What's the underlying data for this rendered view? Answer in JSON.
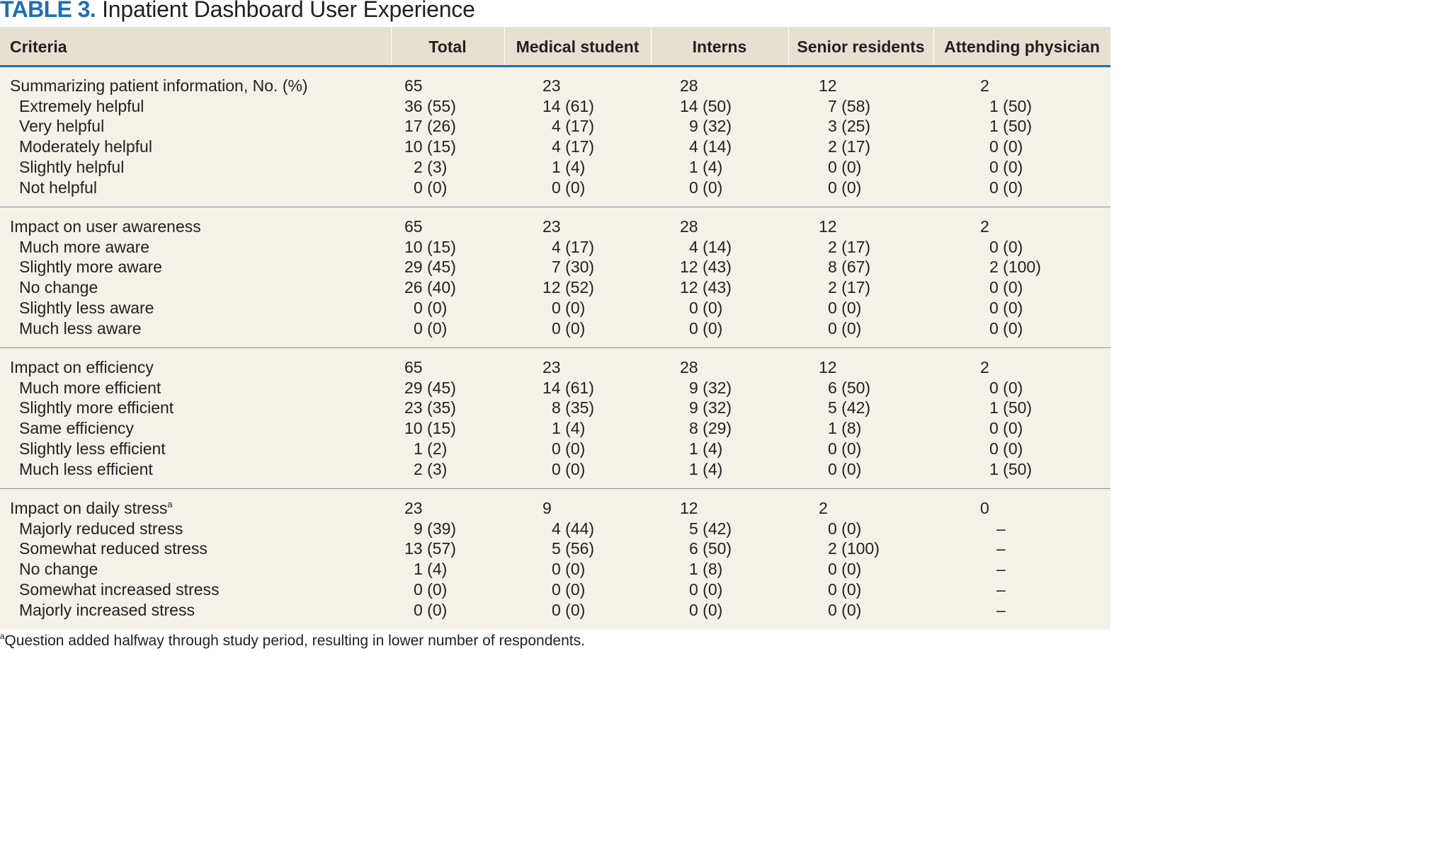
{
  "title": {
    "label": "TABLE 3.",
    "text": "Inpatient Dashboard User Experience"
  },
  "table": {
    "headers": [
      "Criteria",
      "Total",
      "Medical student",
      "Interns",
      "Senior residents",
      "Attending physician"
    ],
    "groups": [
      {
        "rows": [
          {
            "criteria": "Summarizing patient information, No. (%)",
            "values": [
              "65",
              "23",
              "28",
              "12",
              "2"
            ]
          },
          {
            "criteria": "Extremely helpful",
            "values": [
              "36 (55)",
              "14 (61)",
              "14 (50)",
              "7 (58)",
              "1 (50)"
            ]
          },
          {
            "criteria": "Very helpful",
            "values": [
              "17 (26)",
              "4 (17)",
              "9 (32)",
              "3 (25)",
              "1 (50)"
            ]
          },
          {
            "criteria": "Moderately helpful",
            "values": [
              "10 (15)",
              "4 (17)",
              "4 (14)",
              "2 (17)",
              "0 (0)"
            ]
          },
          {
            "criteria": "Slightly helpful",
            "values": [
              "2 (3)",
              "1 (4)",
              "1 (4)",
              "0 (0)",
              "0 (0)"
            ]
          },
          {
            "criteria": "Not helpful",
            "values": [
              "0 (0)",
              "0 (0)",
              "0 (0)",
              "0 (0)",
              "0 (0)"
            ]
          }
        ]
      },
      {
        "rows": [
          {
            "criteria": "Impact on user awareness",
            "values": [
              "65",
              "23",
              "28",
              "12",
              "2"
            ]
          },
          {
            "criteria": "Much more aware",
            "values": [
              "10 (15)",
              "4 (17)",
              "4 (14)",
              "2 (17)",
              "0 (0)"
            ]
          },
          {
            "criteria": "Slightly more aware",
            "values": [
              "29 (45)",
              "7 (30)",
              "12 (43)",
              "8 (67)",
              "2 (100)"
            ]
          },
          {
            "criteria": "No change",
            "values": [
              "26 (40)",
              "12 (52)",
              "12 (43)",
              "2 (17)",
              "0 (0)"
            ]
          },
          {
            "criteria": "Slightly less aware",
            "values": [
              "0 (0)",
              "0 (0)",
              "0 (0)",
              "0 (0)",
              "0 (0)"
            ]
          },
          {
            "criteria": "Much less aware",
            "values": [
              "0 (0)",
              "0 (0)",
              "0 (0)",
              "0 (0)",
              "0 (0)"
            ]
          }
        ]
      },
      {
        "rows": [
          {
            "criteria": "Impact on efficiency",
            "values": [
              "65",
              "23",
              "28",
              "12",
              "2"
            ]
          },
          {
            "criteria": "Much more efficient",
            "values": [
              "29 (45)",
              "14 (61)",
              "9 (32)",
              "6 (50)",
              "0 (0)"
            ]
          },
          {
            "criteria": "Slightly more efficient",
            "values": [
              "23 (35)",
              "8 (35)",
              "9 (32)",
              "5 (42)",
              "1 (50)"
            ]
          },
          {
            "criteria": "Same efficiency",
            "values": [
              "10 (15)",
              "1 (4)",
              "8 (29)",
              "1 (8)",
              "0 (0)"
            ]
          },
          {
            "criteria": "Slightly less efficient",
            "values": [
              "1 (2)",
              "0 (0)",
              "1 (4)",
              "0 (0)",
              "0 (0)"
            ]
          },
          {
            "criteria": "Much less efficient",
            "values": [
              "2 (3)",
              "0 (0)",
              "1 (4)",
              "0 (0)",
              "1 (50)"
            ]
          }
        ]
      },
      {
        "rows": [
          {
            "criteria": "Impact on daily stress",
            "sup": "a",
            "values": [
              "23",
              "9",
              "12",
              "2",
              "0"
            ]
          },
          {
            "criteria": "Majorly reduced stress",
            "values": [
              "9 (39)",
              "4 (44)",
              "5 (42)",
              "0 (0)",
              "–"
            ]
          },
          {
            "criteria": "Somewhat reduced stress",
            "values": [
              "13 (57)",
              "5 (56)",
              "6 (50)",
              "2 (100)",
              "–"
            ]
          },
          {
            "criteria": "No change",
            "values": [
              "1 (4)",
              "0 (0)",
              "1 (8)",
              "0 (0)",
              "–"
            ]
          },
          {
            "criteria": "Somewhat increased stress",
            "values": [
              "0 (0)",
              "0 (0)",
              "0 (0)",
              "0 (0)",
              "–"
            ]
          },
          {
            "criteria": "Majorly increased stress",
            "values": [
              "0 (0)",
              "0 (0)",
              "0 (0)",
              "0 (0)",
              "–"
            ]
          }
        ]
      }
    ]
  },
  "footnote": {
    "sup": "a",
    "text": "Question added halfway through study period, resulting in lower number of respondents."
  }
}
